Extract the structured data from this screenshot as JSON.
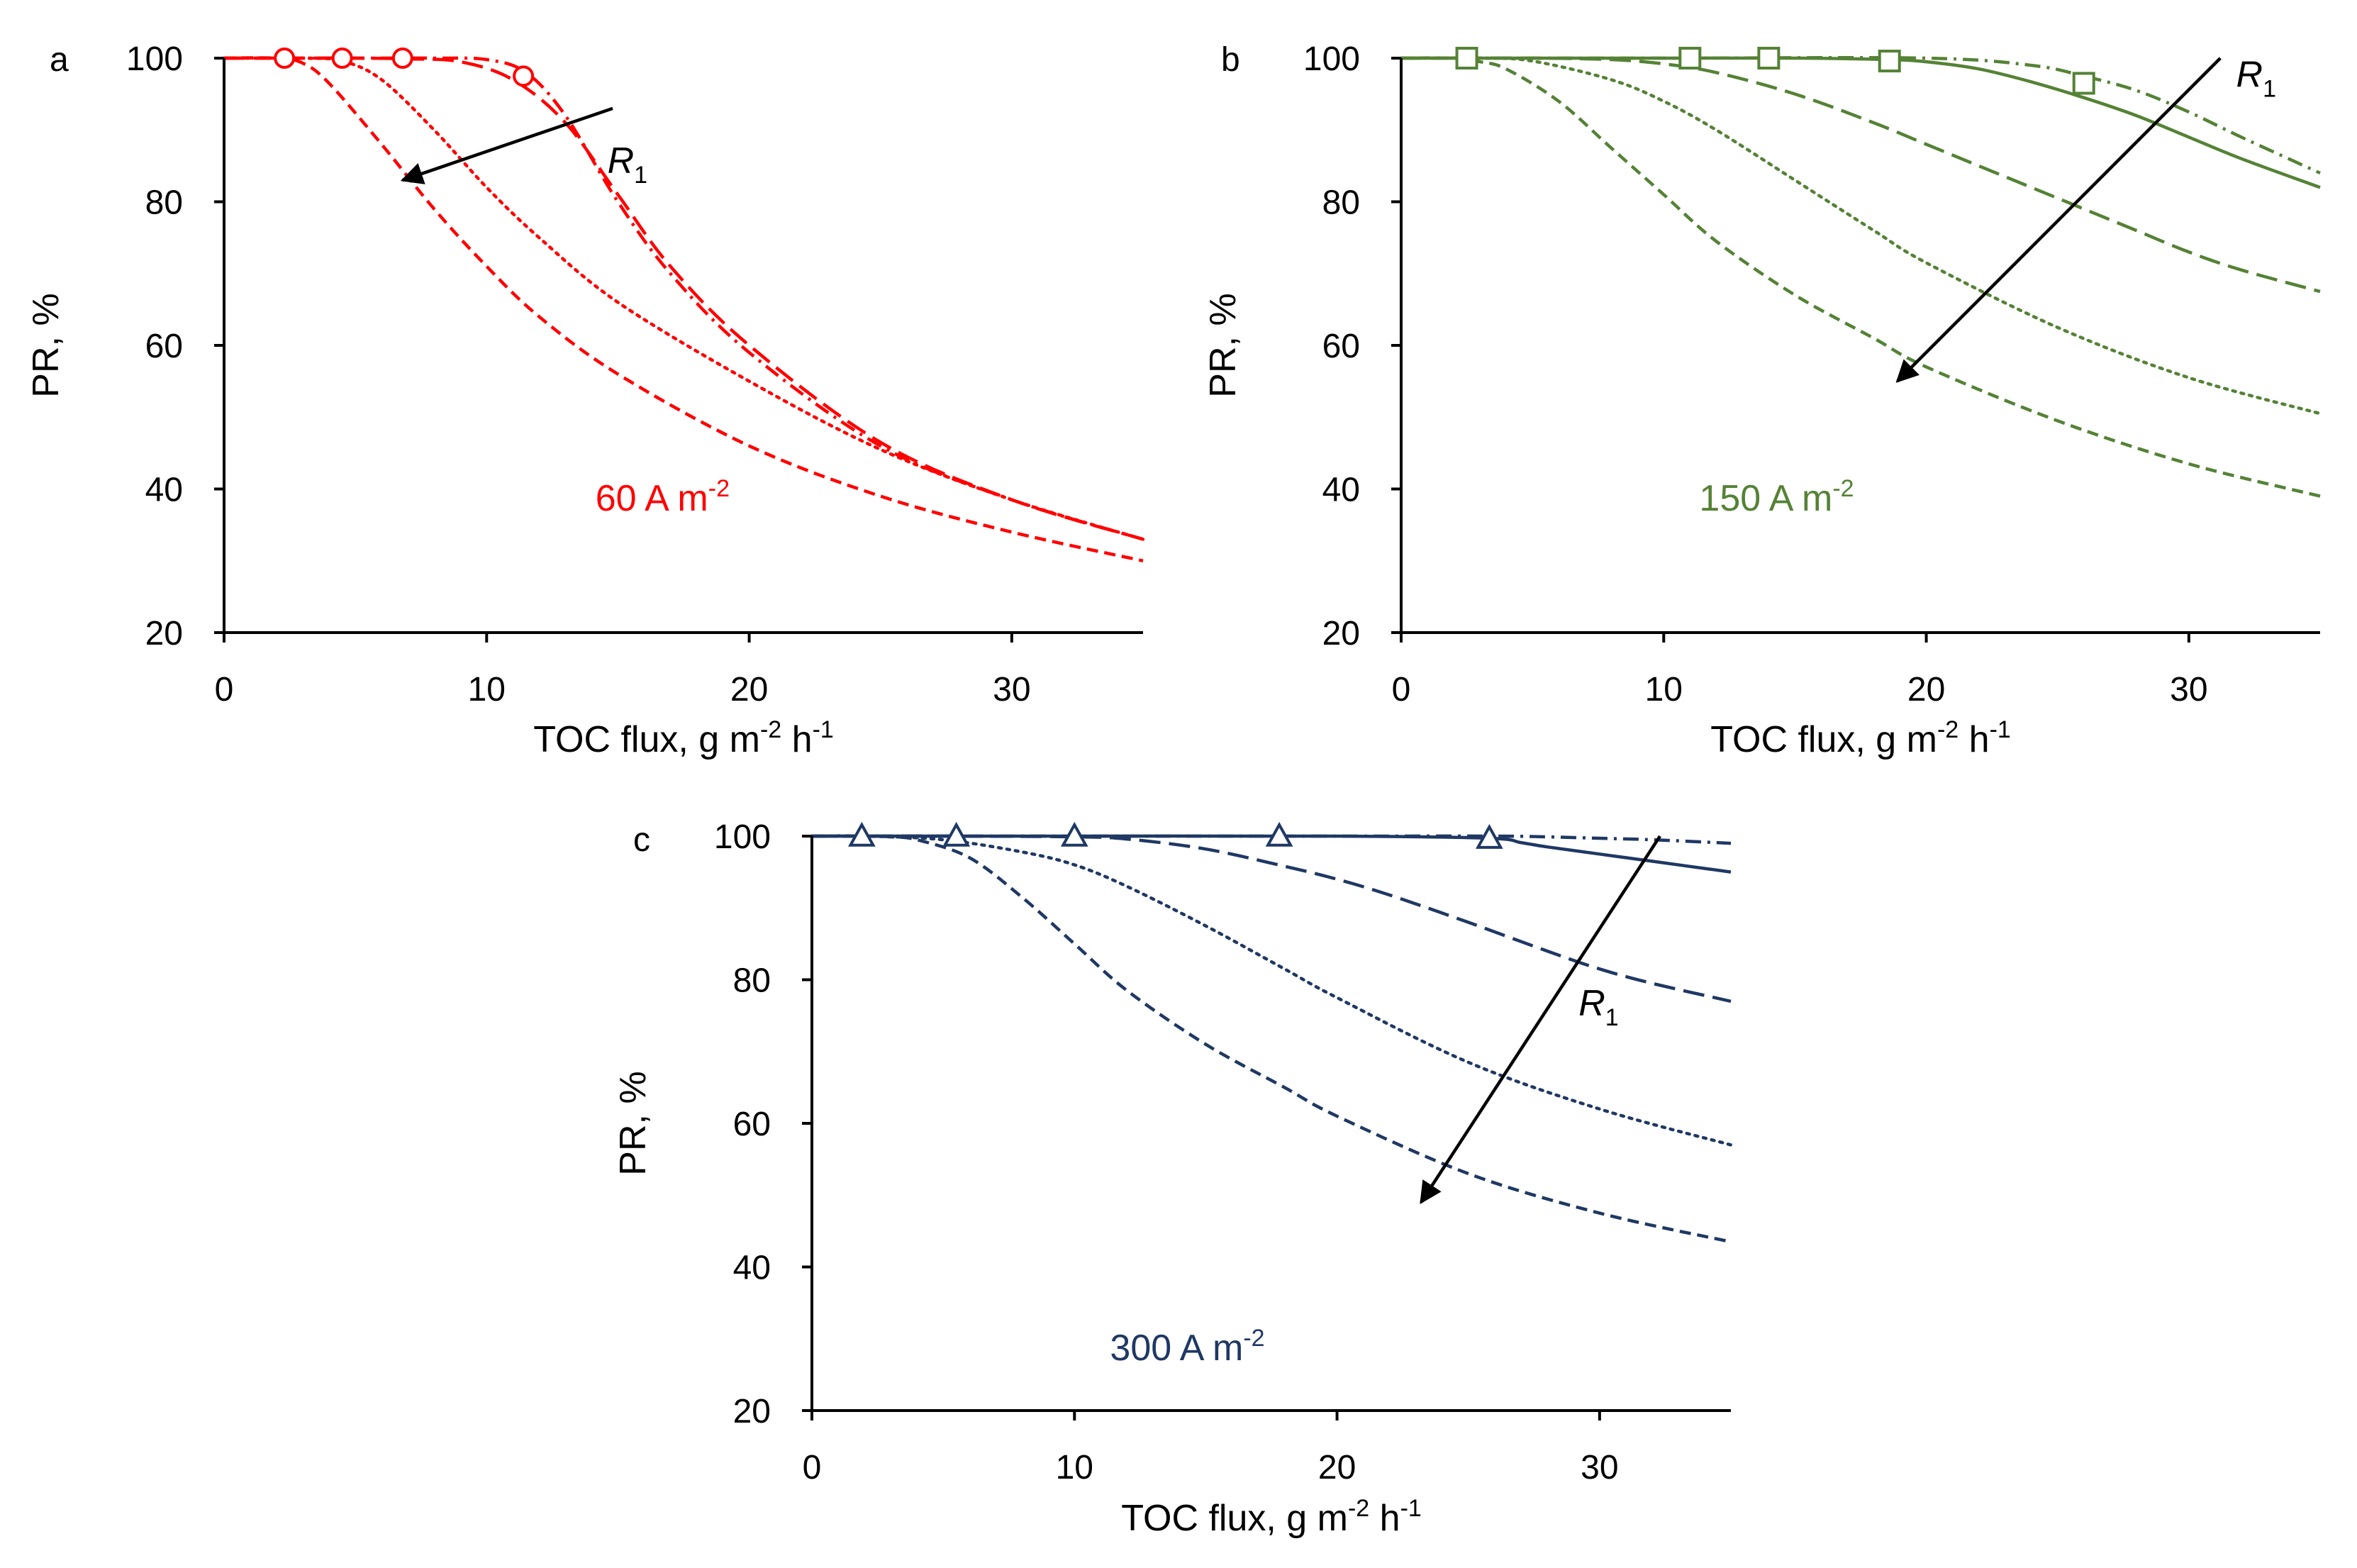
{
  "chart_data": [
    {
      "id": "a",
      "type": "line",
      "panel_label": "a",
      "color": "#ff0000",
      "marker": "circle",
      "xlabel": "TOC flux, g m",
      "xlabel_sup1": "-2",
      "xlabel_mid": " h",
      "xlabel_sup2": "-1",
      "ylabel": "PR, %",
      "xlim": [
        0,
        35
      ],
      "ylim": [
        20,
        100
      ],
      "xticks": [
        "0",
        "10",
        "20",
        "30"
      ],
      "yticks": [
        "20",
        "40",
        "60",
        "80",
        "100"
      ],
      "annotation": "60 A m",
      "annotation_sup": "-2",
      "arrow_label": "R",
      "arrow_sub": "1",
      "arrow_data": {
        "from": [
          14.8,
          93
        ],
        "to": [
          6.8,
          83
        ]
      },
      "label_data": {
        "at": [
          14.6,
          84
        ]
      },
      "annotation_data": {
        "at": [
          16.7,
          37
        ]
      },
      "series": [
        {
          "name": "dash-dot",
          "dash": "dashdot",
          "x": [
            0,
            5,
            8,
            10,
            11.5,
            13,
            15,
            17,
            20,
            25,
            30,
            35
          ],
          "y": [
            100,
            100,
            100,
            99.8,
            98,
            92,
            80,
            70,
            59,
            46,
            38.5,
            33
          ]
        },
        {
          "name": "long-dash",
          "dash": "longdash",
          "x": [
            0,
            3,
            5,
            7,
            9,
            11,
            13,
            15,
            17,
            20,
            25,
            30,
            35
          ],
          "y": [
            100,
            100,
            100,
            99.9,
            99.5,
            97,
            91,
            81,
            71,
            60,
            46.5,
            38.5,
            33
          ]
        },
        {
          "name": "dotted",
          "dash": "dotted",
          "x": [
            0,
            3,
            4.5,
            6,
            8,
            10,
            12,
            15,
            20,
            25,
            30,
            35
          ],
          "y": [
            100,
            100,
            99.6,
            97,
            90,
            82,
            75,
            66,
            55,
            45.5,
            38.5,
            33
          ]
        },
        {
          "name": "dashed",
          "dash": "dashed",
          "x": [
            0,
            2,
            3,
            4,
            6,
            8,
            10,
            12,
            15,
            20,
            25,
            30,
            35
          ],
          "y": [
            100,
            100,
            99.3,
            96.5,
            88,
            79,
            71,
            64,
            56,
            46,
            39,
            34,
            30
          ]
        }
      ],
      "markers": {
        "x": [
          2.3,
          4.5,
          6.8,
          11.4
        ],
        "y": [
          100,
          100,
          100,
          97.5
        ]
      }
    },
    {
      "id": "b",
      "type": "line",
      "panel_label": "b",
      "color": "#548235",
      "marker": "square",
      "xlabel": "TOC flux, g m",
      "xlabel_sup1": "-2",
      "xlabel_mid": " h",
      "xlabel_sup2": "-1",
      "ylabel": "PR, %",
      "xlim": [
        0,
        35
      ],
      "ylim": [
        20,
        100
      ],
      "xticks": [
        "0",
        "10",
        "20",
        "30"
      ],
      "yticks": [
        "20",
        "40",
        "60",
        "80",
        "100"
      ],
      "annotation": "150 A m",
      "annotation_sup": "-2",
      "arrow_label": "R",
      "arrow_sub": "1",
      "arrow_data": {
        "from": [
          31.2,
          100
        ],
        "to": [
          18.9,
          55
        ]
      },
      "label_data": {
        "at": [
          31.8,
          96
        ]
      },
      "annotation_data": {
        "at": [
          14.3,
          37
        ]
      },
      "series": [
        {
          "name": "dash-dot",
          "dash": "dashdot",
          "x": [
            0,
            10,
            20,
            24,
            26,
            28,
            30,
            32,
            35
          ],
          "y": [
            100,
            100,
            100,
            99,
            97.5,
            95.5,
            92.5,
            89,
            84
          ]
        },
        {
          "name": "solid",
          "dash": "solid",
          "x": [
            0,
            5,
            10,
            15,
            18.5,
            20,
            22,
            24,
            26,
            28,
            30,
            32,
            35
          ],
          "y": [
            100,
            100,
            100,
            100,
            99.8,
            99.5,
            98.5,
            96.7,
            94.5,
            92,
            89,
            86,
            82
          ]
        },
        {
          "name": "long-dash",
          "dash": "longdash",
          "x": [
            0,
            5,
            8,
            10,
            12,
            15,
            18,
            20,
            22,
            25,
            28,
            30,
            32,
            35
          ],
          "y": [
            100,
            100,
            99.8,
            99.2,
            98,
            95,
            91,
            88,
            85,
            80.5,
            76,
            73,
            70.5,
            67.5
          ]
        },
        {
          "name": "dotted",
          "dash": "dotted",
          "x": [
            0,
            3,
            5,
            8,
            10,
            12,
            15,
            18,
            20,
            25,
            30,
            35
          ],
          "y": [
            100,
            100,
            99.6,
            97,
            94,
            90,
            83,
            76,
            71.5,
            62.5,
            55.5,
            50.5
          ]
        },
        {
          "name": "dashed",
          "dash": "dashed",
          "x": [
            0,
            2,
            3,
            4,
            6,
            8,
            10,
            12,
            15,
            18,
            20,
            25,
            30,
            35
          ],
          "y": [
            100,
            100,
            99.5,
            98.5,
            94,
            87.5,
            81,
            74.5,
            67,
            61,
            57,
            49.5,
            43.5,
            39
          ]
        }
      ],
      "markers": {
        "x": [
          2.5,
          11,
          14,
          18.6,
          26
        ],
        "y": [
          100,
          100,
          100,
          99.6,
          96.5
        ]
      }
    },
    {
      "id": "c",
      "type": "line",
      "panel_label": "c",
      "color": "#1f3864",
      "marker": "triangle",
      "xlabel": "TOC flux, g m",
      "xlabel_sup1": "-2",
      "xlabel_mid": " h",
      "xlabel_sup2": "-1",
      "ylabel": "PR, %",
      "xlim": [
        0,
        35
      ],
      "ylim": [
        20,
        100
      ],
      "xticks": [
        "0",
        "10",
        "20",
        "30"
      ],
      "yticks": [
        "20",
        "40",
        "60",
        "80",
        "100"
      ],
      "annotation": "300 A m",
      "annotation_sup": "-2",
      "arrow_label": "R",
      "arrow_sub": "1",
      "arrow_data": {
        "from": [
          32.3,
          100
        ],
        "to": [
          23.2,
          49
        ]
      },
      "label_data": {
        "at": [
          29.2,
          75
        ]
      },
      "annotation_data": {
        "at": [
          14.3,
          27
        ]
      },
      "series": [
        {
          "name": "dash-dot",
          "dash": "dashdot",
          "x": [
            0,
            10,
            20,
            26,
            28,
            30,
            32,
            35
          ],
          "y": [
            100,
            100,
            100,
            100,
            99.9,
            99.7,
            99.5,
            99
          ]
        },
        {
          "name": "solid",
          "dash": "solid",
          "x": [
            0,
            10,
            20,
            25.8,
            27,
            28,
            30,
            32,
            35
          ],
          "y": [
            100,
            100,
            100,
            99.7,
            99.1,
            98.5,
            97.5,
            96.5,
            95
          ]
        },
        {
          "name": "long-dash",
          "dash": "longdash",
          "x": [
            0,
            5,
            10,
            12,
            15,
            18,
            20,
            22,
            25,
            28,
            30,
            32,
            35
          ],
          "y": [
            100,
            100,
            99.9,
            99.6,
            98.2,
            95.8,
            94,
            91.8,
            88,
            84,
            81.5,
            79.5,
            77
          ]
        },
        {
          "name": "dotted",
          "dash": "dotted",
          "x": [
            0,
            2,
            5,
            8,
            10,
            12,
            15,
            18,
            20,
            25,
            30,
            35
          ],
          "y": [
            100,
            100,
            99.5,
            97.8,
            96,
            93,
            87.5,
            81.5,
            77.5,
            68.5,
            62,
            57
          ]
        },
        {
          "name": "dashed",
          "dash": "dashed",
          "x": [
            0,
            2,
            3,
            4,
            6,
            8,
            10,
            12,
            15,
            18,
            20,
            25,
            30,
            35
          ],
          "y": [
            100,
            100,
            99.9,
            99.5,
            97,
            91.5,
            85,
            78.5,
            71,
            65,
            61,
            53,
            47.5,
            43.5
          ]
        }
      ],
      "markers": {
        "x": [
          1.9,
          5.5,
          10,
          17.8,
          25.8
        ],
        "y": [
          100,
          100,
          100,
          100,
          99.7
        ]
      }
    }
  ]
}
